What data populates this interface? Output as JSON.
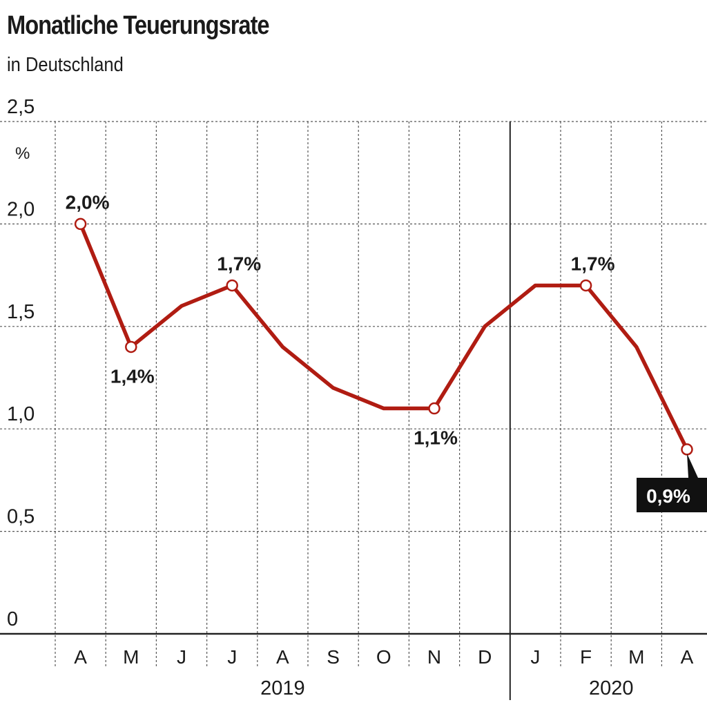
{
  "header": {
    "title": "Monatliche Teuerungsrate",
    "subtitle": "in Deutschland"
  },
  "chart_data": {
    "type": "line",
    "title": "Monatliche Teuerungsrate",
    "subtitle": "in Deutschland",
    "unit": "%",
    "categories": [
      "A",
      "M",
      "J",
      "J",
      "A",
      "S",
      "O",
      "N",
      "D",
      "J",
      "F",
      "M",
      "A"
    ],
    "year_groups": [
      {
        "label": "2019",
        "start": 0,
        "end": 8
      },
      {
        "label": "2020",
        "start": 9,
        "end": 12
      }
    ],
    "series": [
      {
        "values": [
          2.0,
          1.4,
          1.6,
          1.7,
          1.4,
          1.2,
          1.1,
          1.1,
          1.5,
          1.7,
          1.7,
          1.4,
          0.9
        ],
        "color": "#b01c12"
      }
    ],
    "ylim": [
      0,
      2.5
    ],
    "yticks": [
      "0",
      "0,5",
      "1,0",
      "1,5",
      "2,0",
      "2,5"
    ],
    "grid": true,
    "annotations": [
      {
        "index": 0,
        "text": "2,0%",
        "pos": "above"
      },
      {
        "index": 1,
        "text": "1,4%",
        "pos": "below"
      },
      {
        "index": 3,
        "text": "1,7%",
        "pos": "above"
      },
      {
        "index": 7,
        "text": "1,1%",
        "pos": "below"
      },
      {
        "index": 10,
        "text": "1,7%",
        "pos": "above"
      },
      {
        "index": 12,
        "text": "0,9%",
        "pos": "box"
      }
    ]
  },
  "colors": {
    "line": "#b01c12",
    "text": "#1a1a1a",
    "grid": "#555555",
    "highlight_box": "#111111"
  }
}
